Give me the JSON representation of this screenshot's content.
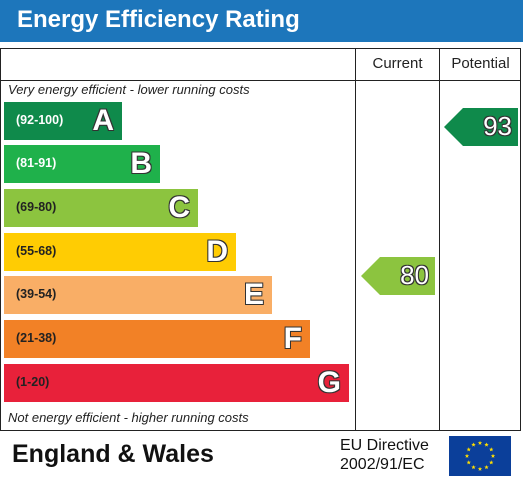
{
  "header": {
    "title": "Energy Efficiency Rating"
  },
  "columns": {
    "current": "Current",
    "potential": "Potential"
  },
  "notes": {
    "top": "Very energy efficient - lower running costs",
    "bottom": "Not energy efficient - higher running costs"
  },
  "footer": {
    "country": "England & Wales",
    "directive_line1": "EU Directive",
    "directive_line2": "2002/91/EC"
  },
  "colors": {
    "header": "#1d76bb",
    "A": "#0f8a4b",
    "B": "#1fb14b",
    "C": "#8cc43f",
    "D": "#ffcc03",
    "E": "#f9ae66",
    "F": "#f28126",
    "G": "#e8213a",
    "flag": "#0b3f9a",
    "stars": "#ffde00"
  },
  "icons": {
    "flag": "eu-flag-icon"
  },
  "chart_data": {
    "type": "bar",
    "title": "Energy Efficiency Rating",
    "bands": [
      {
        "letter": "A",
        "range": "(92-100)"
      },
      {
        "letter": "B",
        "range": "(81-91)"
      },
      {
        "letter": "C",
        "range": "(69-80)"
      },
      {
        "letter": "D",
        "range": "(55-68)"
      },
      {
        "letter": "E",
        "range": "(39-54)"
      },
      {
        "letter": "F",
        "range": "(21-38)"
      },
      {
        "letter": "G",
        "range": "(1-20)"
      }
    ],
    "current": {
      "value": 80,
      "label": "80",
      "band": "C"
    },
    "potential": {
      "value": 93,
      "label": "93",
      "band": "A"
    }
  }
}
